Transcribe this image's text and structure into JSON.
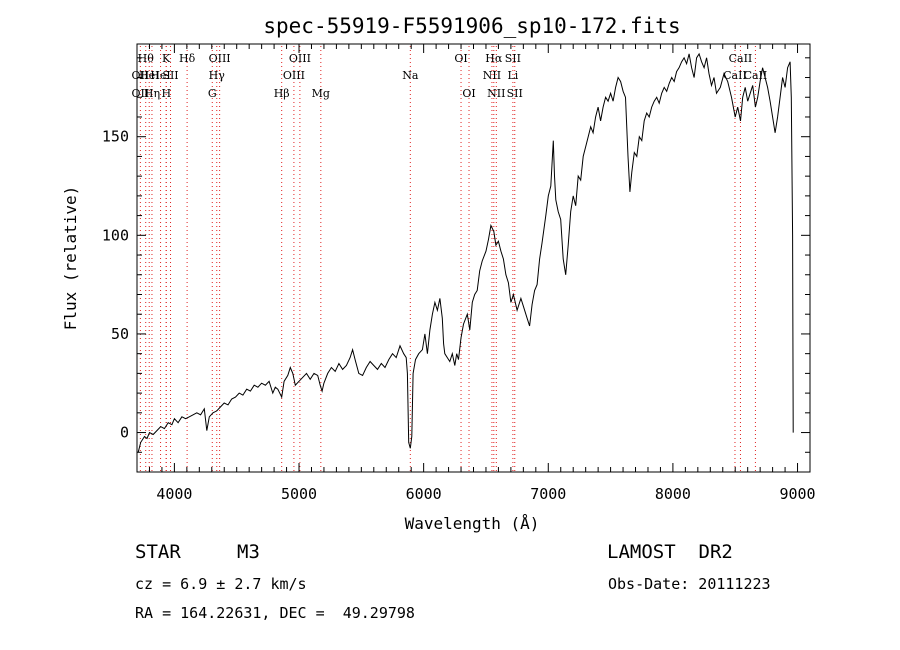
{
  "chart_data": {
    "type": "line",
    "title": "spec-55919-F5591906_sp10-172.fits",
    "xlabel": "Wavelength (Å)",
    "ylabel": "Flux (relative)",
    "xlim": [
      3700,
      9100
    ],
    "ylim": [
      -20,
      197
    ],
    "xticks": [
      4000,
      5000,
      6000,
      7000,
      8000,
      9000
    ],
    "yticks": [
      0,
      50,
      100,
      150
    ],
    "grid": false,
    "series": [
      {
        "values": [
          [
            3710,
            -10
          ],
          [
            3730,
            -5
          ],
          [
            3760,
            -2
          ],
          [
            3780,
            -3
          ],
          [
            3800,
            0
          ],
          [
            3830,
            -1
          ],
          [
            3860,
            1
          ],
          [
            3890,
            3
          ],
          [
            3920,
            2
          ],
          [
            3950,
            5
          ],
          [
            3980,
            4
          ],
          [
            4000,
            7
          ],
          [
            4030,
            5
          ],
          [
            4060,
            8
          ],
          [
            4090,
            7
          ],
          [
            4120,
            8
          ],
          [
            4150,
            9
          ],
          [
            4180,
            10
          ],
          [
            4210,
            9
          ],
          [
            4240,
            12
          ],
          [
            4260,
            1
          ],
          [
            4280,
            8
          ],
          [
            4310,
            10
          ],
          [
            4340,
            11
          ],
          [
            4370,
            13
          ],
          [
            4400,
            15
          ],
          [
            4430,
            14
          ],
          [
            4460,
            17
          ],
          [
            4490,
            18
          ],
          [
            4520,
            20
          ],
          [
            4550,
            19
          ],
          [
            4580,
            22
          ],
          [
            4610,
            21
          ],
          [
            4640,
            24
          ],
          [
            4670,
            23
          ],
          [
            4700,
            25
          ],
          [
            4730,
            24
          ],
          [
            4760,
            26
          ],
          [
            4790,
            20
          ],
          [
            4810,
            23
          ],
          [
            4830,
            22
          ],
          [
            4861,
            18
          ],
          [
            4880,
            26
          ],
          [
            4910,
            29
          ],
          [
            4930,
            33
          ],
          [
            4950,
            30
          ],
          [
            4970,
            24
          ],
          [
            5000,
            26
          ],
          [
            5030,
            28
          ],
          [
            5060,
            30
          ],
          [
            5090,
            27
          ],
          [
            5120,
            30
          ],
          [
            5150,
            29
          ],
          [
            5170,
            24
          ],
          [
            5185,
            21
          ],
          [
            5200,
            25
          ],
          [
            5230,
            30
          ],
          [
            5260,
            33
          ],
          [
            5290,
            31
          ],
          [
            5320,
            35
          ],
          [
            5350,
            32
          ],
          [
            5380,
            34
          ],
          [
            5410,
            38
          ],
          [
            5430,
            42
          ],
          [
            5450,
            37
          ],
          [
            5480,
            30
          ],
          [
            5510,
            29
          ],
          [
            5540,
            33
          ],
          [
            5570,
            36
          ],
          [
            5600,
            34
          ],
          [
            5630,
            32
          ],
          [
            5660,
            35
          ],
          [
            5690,
            33
          ],
          [
            5720,
            37
          ],
          [
            5750,
            40
          ],
          [
            5780,
            38
          ],
          [
            5810,
            44
          ],
          [
            5840,
            40
          ],
          [
            5860,
            38
          ],
          [
            5870,
            30
          ],
          [
            5880,
            -5
          ],
          [
            5893,
            -8
          ],
          [
            5905,
            -2
          ],
          [
            5915,
            30
          ],
          [
            5935,
            37
          ],
          [
            5960,
            40
          ],
          [
            5990,
            42
          ],
          [
            6010,
            50
          ],
          [
            6030,
            40
          ],
          [
            6050,
            52
          ],
          [
            6070,
            60
          ],
          [
            6090,
            66
          ],
          [
            6110,
            62
          ],
          [
            6130,
            68
          ],
          [
            6150,
            58
          ],
          [
            6160,
            45
          ],
          [
            6170,
            40
          ],
          [
            6190,
            38
          ],
          [
            6210,
            36
          ],
          [
            6230,
            40
          ],
          [
            6250,
            34
          ],
          [
            6265,
            40
          ],
          [
            6280,
            37
          ],
          [
            6300,
            48
          ],
          [
            6320,
            55
          ],
          [
            6350,
            60
          ],
          [
            6370,
            52
          ],
          [
            6390,
            66
          ],
          [
            6410,
            70
          ],
          [
            6430,
            72
          ],
          [
            6450,
            82
          ],
          [
            6470,
            87
          ],
          [
            6500,
            92
          ],
          [
            6520,
            98
          ],
          [
            6540,
            105
          ],
          [
            6563,
            102
          ],
          [
            6580,
            95
          ],
          [
            6600,
            97
          ],
          [
            6620,
            92
          ],
          [
            6640,
            88
          ],
          [
            6660,
            80
          ],
          [
            6680,
            76
          ],
          [
            6700,
            66
          ],
          [
            6720,
            70
          ],
          [
            6750,
            62
          ],
          [
            6780,
            68
          ],
          [
            6800,
            64
          ],
          [
            6830,
            58
          ],
          [
            6850,
            54
          ],
          [
            6870,
            65
          ],
          [
            6890,
            72
          ],
          [
            6910,
            75
          ],
          [
            6930,
            88
          ],
          [
            6950,
            96
          ],
          [
            6980,
            110
          ],
          [
            7000,
            120
          ],
          [
            7020,
            125
          ],
          [
            7040,
            148
          ],
          [
            7050,
            130
          ],
          [
            7060,
            118
          ],
          [
            7080,
            112
          ],
          [
            7100,
            108
          ],
          [
            7120,
            88
          ],
          [
            7140,
            80
          ],
          [
            7160,
            95
          ],
          [
            7180,
            112
          ],
          [
            7200,
            120
          ],
          [
            7220,
            115
          ],
          [
            7240,
            130
          ],
          [
            7260,
            128
          ],
          [
            7280,
            140
          ],
          [
            7300,
            145
          ],
          [
            7320,
            150
          ],
          [
            7340,
            155
          ],
          [
            7360,
            152
          ],
          [
            7380,
            160
          ],
          [
            7400,
            165
          ],
          [
            7420,
            158
          ],
          [
            7440,
            165
          ],
          [
            7460,
            170
          ],
          [
            7480,
            168
          ],
          [
            7500,
            172
          ],
          [
            7520,
            168
          ],
          [
            7540,
            175
          ],
          [
            7560,
            180
          ],
          [
            7580,
            178
          ],
          [
            7600,
            173
          ],
          [
            7620,
            170
          ],
          [
            7640,
            140
          ],
          [
            7655,
            122
          ],
          [
            7670,
            132
          ],
          [
            7690,
            142
          ],
          [
            7710,
            140
          ],
          [
            7730,
            150
          ],
          [
            7750,
            148
          ],
          [
            7770,
            158
          ],
          [
            7790,
            162
          ],
          [
            7810,
            160
          ],
          [
            7830,
            165
          ],
          [
            7850,
            168
          ],
          [
            7870,
            170
          ],
          [
            7890,
            167
          ],
          [
            7910,
            172
          ],
          [
            7930,
            175
          ],
          [
            7950,
            173
          ],
          [
            7970,
            177
          ],
          [
            7990,
            180
          ],
          [
            8010,
            178
          ],
          [
            8030,
            183
          ],
          [
            8050,
            185
          ],
          [
            8070,
            188
          ],
          [
            8090,
            190
          ],
          [
            8110,
            187
          ],
          [
            8130,
            192
          ],
          [
            8150,
            185
          ],
          [
            8170,
            180
          ],
          [
            8190,
            190
          ],
          [
            8210,
            192
          ],
          [
            8230,
            188
          ],
          [
            8250,
            185
          ],
          [
            8270,
            190
          ],
          [
            8290,
            182
          ],
          [
            8310,
            176
          ],
          [
            8330,
            180
          ],
          [
            8350,
            172
          ],
          [
            8380,
            175
          ],
          [
            8410,
            182
          ],
          [
            8440,
            178
          ],
          [
            8470,
            170
          ],
          [
            8500,
            160
          ],
          [
            8520,
            165
          ],
          [
            8542,
            158
          ],
          [
            8560,
            170
          ],
          [
            8580,
            175
          ],
          [
            8600,
            168
          ],
          [
            8620,
            172
          ],
          [
            8640,
            176
          ],
          [
            8662,
            165
          ],
          [
            8680,
            170
          ],
          [
            8700,
            178
          ],
          [
            8720,
            185
          ],
          [
            8740,
            180
          ],
          [
            8760,
            175
          ],
          [
            8780,
            168
          ],
          [
            8800,
            160
          ],
          [
            8820,
            152
          ],
          [
            8840,
            160
          ],
          [
            8860,
            170
          ],
          [
            8880,
            180
          ],
          [
            8900,
            175
          ],
          [
            8920,
            185
          ],
          [
            8940,
            188
          ],
          [
            8950,
            170
          ],
          [
            8960,
            100
          ],
          [
            8965,
            0
          ]
        ]
      }
    ],
    "lines": [
      {
        "w": 3727,
        "label": "OII",
        "row": 1
      },
      {
        "w": 3727,
        "label": "OII",
        "row": 2
      },
      {
        "w": 3770,
        "label": "Hθ",
        "row": 0
      },
      {
        "w": 3798,
        "label": "HeI",
        "row": 1
      },
      {
        "w": 3820,
        "label": "Hη",
        "row": 2
      },
      {
        "w": 3889,
        "label": "HeI",
        "row": 1
      },
      {
        "w": 3934,
        "label": "K",
        "row": 0
      },
      {
        "w": 3935,
        "label": "H",
        "row": 2
      },
      {
        "w": 3969,
        "label": "SII",
        "row": 1
      },
      {
        "w": 4102,
        "label": "Hδ",
        "row": 0
      },
      {
        "w": 4304,
        "label": "G",
        "row": 2
      },
      {
        "w": 4340,
        "label": "Hγ",
        "row": 1
      },
      {
        "w": 4363,
        "label": "OIII",
        "row": 0
      },
      {
        "w": 4861,
        "label": "Hβ",
        "row": 2
      },
      {
        "w": 4959,
        "label": "OIII",
        "row": 1
      },
      {
        "w": 5007,
        "label": "OIII",
        "row": 0
      },
      {
        "w": 5175,
        "label": "Mg",
        "row": 2
      },
      {
        "w": 5893,
        "label": "Na",
        "row": 1
      },
      {
        "w": 6300,
        "label": "OI",
        "row": 0
      },
      {
        "w": 6364,
        "label": "OI",
        "row": 2
      },
      {
        "w": 6548,
        "label": "NII",
        "row": 1
      },
      {
        "w": 6563,
        "label": "Hα",
        "row": 0
      },
      {
        "w": 6583,
        "label": "NII",
        "row": 2
      },
      {
        "w": 6716,
        "label": "SII",
        "row": 0
      },
      {
        "w": 6716,
        "label": "Li",
        "row": 1
      },
      {
        "w": 6731,
        "label": "SII",
        "row": 2
      },
      {
        "w": 8498,
        "label": "CaII",
        "row": 1
      },
      {
        "w": 8542,
        "label": "CaII",
        "row": 0
      },
      {
        "w": 8662,
        "label": "CaII",
        "row": 1
      }
    ]
  },
  "info": {
    "object_class": "STAR",
    "subclass": "M3",
    "survey": "LAMOST  DR2",
    "cz": "cz = 6.9 ± 2.7 km/s",
    "obs_date": "Obs-Date: 20111223",
    "coords": "RA = 164.22631, DEC =  49.29798"
  },
  "colors": {
    "line_marker": "#e02020",
    "spectrum": "#000000",
    "frame": "#000000"
  }
}
